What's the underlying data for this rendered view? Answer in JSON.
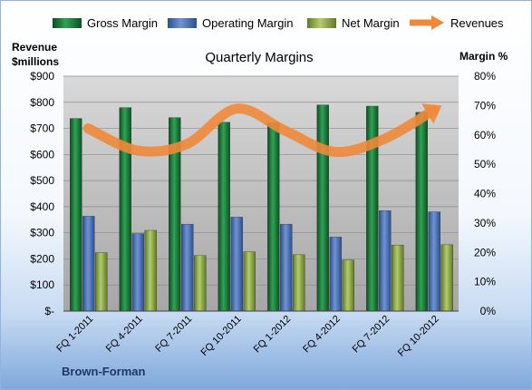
{
  "chart_data": {
    "type": "bar",
    "title": "Quarterly Margins",
    "company": "Brown-Forman",
    "ylabel_left": [
      "Revenue",
      "$millions"
    ],
    "ylabel_right": "Margin %",
    "categories": [
      "FQ 1-2011",
      "FQ 4-2011",
      "FQ 7-2011",
      "FQ 10-2011",
      "FQ 1-2012",
      "FQ 4-2012",
      "FQ 7-2012",
      "FQ 10-2012"
    ],
    "ylim_left": [
      0,
      900
    ],
    "ylim_right": [
      0,
      80
    ],
    "left_ticks": [
      "$-",
      "$100",
      "$200",
      "$300",
      "$400",
      "$500",
      "$600",
      "$700",
      "$800",
      "$900"
    ],
    "right_ticks": [
      "0%",
      "10%",
      "20%",
      "30%",
      "40%",
      "50%",
      "60%",
      "70%",
      "80%"
    ],
    "series": [
      {
        "name": "Gross Margin",
        "axis": "right",
        "color": "#1e7a3c",
        "values": [
          65.6,
          69.3,
          65.9,
          64.3,
          64.2,
          70.2,
          69.8,
          67.7
        ]
      },
      {
        "name": "Operating Margin",
        "axis": "right",
        "color": "#4a72b8",
        "values": [
          32.3,
          26.4,
          29.6,
          32.0,
          29.6,
          25.2,
          34.2,
          33.8
        ]
      },
      {
        "name": "Net Margin",
        "axis": "right",
        "color": "#93b04a",
        "values": [
          19.9,
          27.5,
          18.9,
          20.2,
          19.2,
          17.4,
          22.5,
          22.6
        ]
      },
      {
        "name": "Revenues",
        "axis": "left",
        "type": "line",
        "color": "#f0883a",
        "values": [
          700,
          615,
          640,
          775,
          690,
          610,
          660,
          770
        ]
      }
    ],
    "legend_position": "top",
    "grid": true
  }
}
